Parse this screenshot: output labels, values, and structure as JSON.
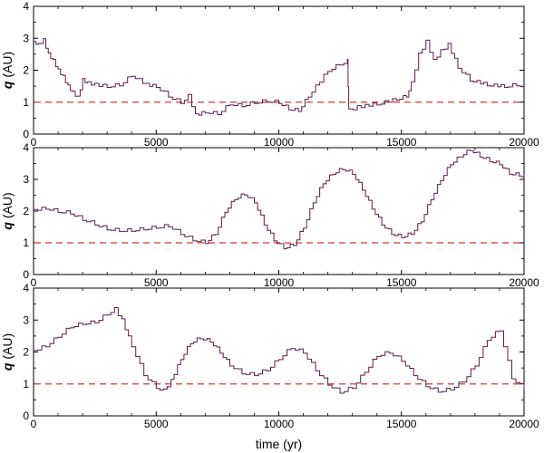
{
  "chart_data": [
    {
      "type": "line",
      "xlabel": "",
      "ylabel_symbol": "q",
      "ylabel_unit": " (AU)",
      "xlim": [
        0,
        20000
      ],
      "ylim": [
        0,
        4
      ],
      "xticks": [
        0,
        5000,
        10000,
        15000,
        20000
      ],
      "yticks": [
        0,
        1,
        2,
        3,
        4
      ],
      "reference_line": {
        "y": 1.0,
        "color": "#e05555",
        "style": "dashed"
      },
      "line_color": "#5a1f4a",
      "series": [
        {
          "x": [
            0,
            200,
            400,
            600,
            800,
            1000,
            1200,
            1400,
            1600,
            1800,
            2000,
            2200,
            2500,
            3000,
            3500,
            4000,
            4300,
            4600,
            5000,
            5500,
            6000,
            6300,
            6600,
            7000,
            7500,
            8000,
            8500,
            9000,
            9500,
            10000,
            10400,
            10800,
            11200,
            11500,
            12000,
            12500,
            12800,
            12850,
            13200,
            14000,
            14800,
            15200,
            15400,
            15700,
            16000,
            16300,
            16600,
            16900,
            17300,
            17800,
            18500,
            19200,
            19700,
            20000
          ],
          "y": [
            2.9,
            2.8,
            2.95,
            2.5,
            2.3,
            2.0,
            1.8,
            1.5,
            1.3,
            1.15,
            1.7,
            1.6,
            1.55,
            1.5,
            1.55,
            1.85,
            1.7,
            1.55,
            1.5,
            1.2,
            1.0,
            1.2,
            0.6,
            0.7,
            0.65,
            0.95,
            0.9,
            1.0,
            1.05,
            1.0,
            0.8,
            0.75,
            1.2,
            1.5,
            2.0,
            2.2,
            2.3,
            0.75,
            0.85,
            0.95,
            1.1,
            1.2,
            1.6,
            2.5,
            2.9,
            2.3,
            2.6,
            2.8,
            2.1,
            1.7,
            1.55,
            1.5,
            1.55,
            1.5
          ]
        }
      ]
    },
    {
      "type": "line",
      "xlabel": "",
      "ylabel_symbol": "q",
      "ylabel_unit": " (AU)",
      "xlim": [
        0,
        20000
      ],
      "ylim": [
        0,
        4
      ],
      "xticks": [
        0,
        5000,
        10000,
        15000,
        20000
      ],
      "yticks": [
        0,
        1,
        2,
        3,
        4
      ],
      "reference_line": {
        "y": 1.0,
        "color": "#e05555",
        "style": "dashed"
      },
      "line_color": "#5a1f4a",
      "series": [
        {
          "x": [
            0,
            500,
            1000,
            1500,
            2000,
            2500,
            3000,
            3500,
            4000,
            4500,
            5000,
            5500,
            6000,
            6500,
            7000,
            7400,
            7800,
            8200,
            8600,
            9000,
            9400,
            9800,
            10200,
            10600,
            11000,
            11400,
            11800,
            12200,
            12600,
            13000,
            13400,
            13800,
            14200,
            14600,
            15000,
            15400,
            15800,
            16200,
            16600,
            17000,
            17400,
            17800,
            18200,
            18600,
            19000,
            19400,
            19800,
            20000
          ],
          "y": [
            2.05,
            2.1,
            2.0,
            1.95,
            1.75,
            1.6,
            1.45,
            1.4,
            1.4,
            1.45,
            1.5,
            1.55,
            1.3,
            1.1,
            1.02,
            1.3,
            2.0,
            2.4,
            2.55,
            2.3,
            1.6,
            1.1,
            0.85,
            0.95,
            1.5,
            2.3,
            2.9,
            3.2,
            3.35,
            3.2,
            2.7,
            2.1,
            1.6,
            1.3,
            1.2,
            1.3,
            1.7,
            2.4,
            3.0,
            3.5,
            3.75,
            3.95,
            3.75,
            3.6,
            3.5,
            3.2,
            3.15,
            3.1
          ]
        }
      ]
    },
    {
      "type": "line",
      "xlabel": "time (yr)",
      "ylabel_symbol": "q",
      "ylabel_unit": " (AU)",
      "xlim": [
        0,
        20000
      ],
      "ylim": [
        0,
        4
      ],
      "xticks": [
        0,
        5000,
        10000,
        15000,
        20000
      ],
      "yticks": [
        0,
        1,
        2,
        3,
        4
      ],
      "reference_line": {
        "y": 1.0,
        "color": "#e05555",
        "style": "dashed"
      },
      "line_color": "#5a1f4a",
      "series": [
        {
          "x": [
            0,
            500,
            1000,
            1500,
            2000,
            2500,
            3000,
            3300,
            3600,
            4000,
            4500,
            5000,
            5300,
            5600,
            6000,
            6400,
            6800,
            7200,
            7600,
            8000,
            8500,
            9000,
            9500,
            10000,
            10500,
            11000,
            11500,
            12000,
            12500,
            13000,
            13500,
            14000,
            14500,
            15000,
            15500,
            16000,
            16500,
            17000,
            17500,
            18000,
            18500,
            19000,
            19500,
            20000
          ],
          "y": [
            2.05,
            2.2,
            2.5,
            2.8,
            2.9,
            2.95,
            3.2,
            3.35,
            3.0,
            2.2,
            1.3,
            0.9,
            0.8,
            1.1,
            1.8,
            2.3,
            2.45,
            2.35,
            2.0,
            1.6,
            1.35,
            1.3,
            1.45,
            1.8,
            2.15,
            2.0,
            1.45,
            1.0,
            0.75,
            0.9,
            1.4,
            1.9,
            2.0,
            1.75,
            1.3,
            0.95,
            0.78,
            0.85,
            1.1,
            1.6,
            2.4,
            2.7,
            1.2,
            0.85
          ]
        }
      ]
    }
  ]
}
